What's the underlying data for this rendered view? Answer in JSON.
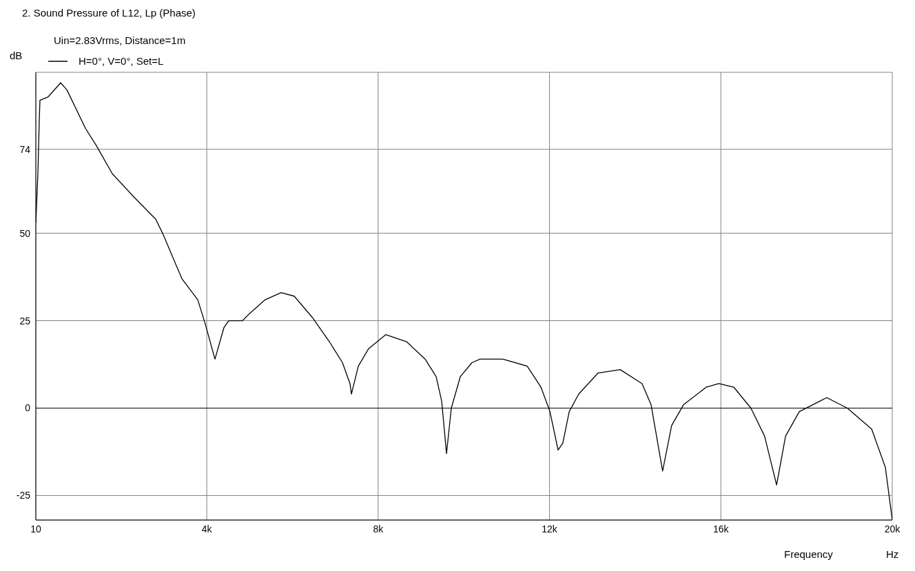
{
  "chart_data": {
    "type": "line",
    "title": "2. Sound Pressure of L12, Lp (Phase)",
    "subtitle": "Uin=2.83Vrms, Distance=1m",
    "xlabel": "Frequency",
    "ylabel": "dB",
    "annotations": [
      "Hz"
    ],
    "x": [
      10,
      58,
      90,
      106,
      299,
      589,
      734,
      1168,
      1425,
      1795,
      2326,
      2808,
      2969,
      3419,
      3789,
      3966,
      4191,
      4400,
      4513,
      4835,
      4995,
      5365,
      5735,
      6041,
      6459,
      6861,
      7167,
      7343,
      7376,
      7537,
      7778,
      8180,
      8662,
      9097,
      9354,
      9483,
      9596,
      9708,
      9918,
      10190,
      10380,
      10910,
      11480,
      11800,
      12010,
      12200,
      12310,
      12460,
      12680,
      13130,
      13650,
      14160,
      14370,
      14640,
      14850,
      15130,
      15660,
      15950,
      16300,
      16700,
      17020,
      17300,
      17510,
      17830,
      18310,
      18470,
      18950,
      19520,
      19840,
      20000
    ],
    "series": [
      {
        "name": "H=0°, V=0°, Set=L",
        "color": "#000000",
        "values": [
          53,
          67,
          82,
          88,
          89,
          93,
          91,
          80,
          75,
          67,
          60,
          54,
          50,
          37,
          31,
          24,
          14,
          23,
          25,
          25,
          27,
          31,
          33,
          32,
          26,
          19,
          13,
          7,
          4,
          12,
          17,
          21,
          19,
          14,
          9,
          2,
          -13,
          0,
          9,
          13,
          14,
          14,
          12,
          6,
          -1,
          -12,
          -10,
          -1,
          4,
          10,
          11,
          7,
          1,
          -18,
          -5,
          1,
          6,
          7,
          6,
          0,
          -8,
          -22,
          -8,
          -1,
          2,
          3,
          0,
          -6,
          -17,
          -32
        ]
      }
    ],
    "xlim": [
      10,
      20000
    ],
    "xticks": [
      10,
      {
        "value": 4000,
        "label": "4k"
      },
      {
        "value": 8000,
        "label": "8k"
      },
      {
        "value": 12000,
        "label": "12k"
      },
      {
        "value": 16000,
        "label": "16k"
      },
      {
        "value": 20000,
        "label": "20k"
      }
    ],
    "ylim": [
      -32,
      96
    ],
    "yticks": [
      -25,
      0,
      25,
      50,
      74
    ],
    "ref_lines": [
      {
        "axis": "y",
        "value": 0,
        "color": "#000000"
      }
    ],
    "grid": true,
    "legend": "top left",
    "marker": "none",
    "line_style": "solid"
  }
}
